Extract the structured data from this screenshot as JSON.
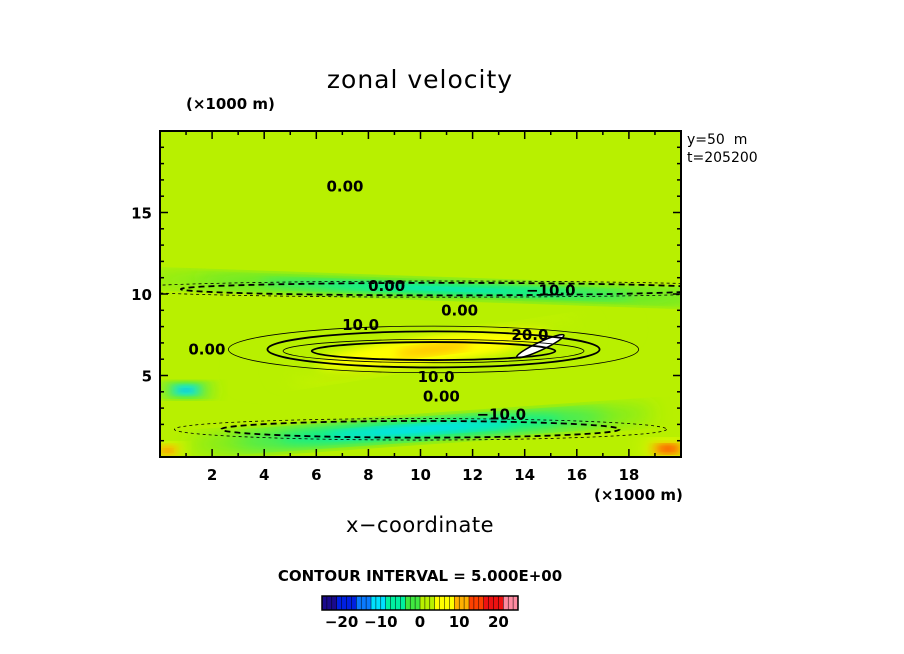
{
  "chart_data": {
    "type": "heatmap",
    "title": "zonal velocity",
    "xlabel": "x−coordinate",
    "x_unit": "(×1000 m)",
    "y_unit": "(×1000 m)",
    "xlim": [
      0,
      20
    ],
    "ylim": [
      0,
      20
    ],
    "x_ticks": [
      2,
      4,
      6,
      8,
      10,
      12,
      14,
      16,
      18
    ],
    "y_ticks": [
      5,
      10,
      15
    ],
    "annotations": [
      "y=50  m",
      "t=205200"
    ],
    "contour_interval_label": "CONTOUR INTERVAL = 5.000E+00",
    "contour_labels": [
      {
        "text": "0.00",
        "x": 7.1,
        "y": 16.6
      },
      {
        "text": "0.00",
        "x": 8.7,
        "y": 10.5
      },
      {
        "text": "−10.0",
        "x": 15.0,
        "y": 10.2
      },
      {
        "text": "0.00",
        "x": 11.5,
        "y": 9.0
      },
      {
        "text": "10.0",
        "x": 7.7,
        "y": 8.1
      },
      {
        "text": "20.0",
        "x": 14.2,
        "y": 7.5
      },
      {
        "text": "0.00",
        "x": 1.8,
        "y": 6.6
      },
      {
        "text": "10.0",
        "x": 10.6,
        "y": 4.9
      },
      {
        "text": "0.00",
        "x": 10.8,
        "y": 3.7
      },
      {
        "text": "−10.0",
        "x": 13.1,
        "y": 2.6
      }
    ],
    "colorbar": {
      "min": -25,
      "max": 25,
      "ticks": [
        -20,
        -10,
        0,
        10,
        20
      ],
      "tick_labels": [
        "−20",
        "−10",
        "0",
        "10",
        "20"
      ]
    },
    "colorscale": [
      "#1a0a8c",
      "#0020e0",
      "#0a7aff",
      "#00e0ff",
      "#00f0a0",
      "#40e840",
      "#b8f000",
      "#ffff00",
      "#ffb000",
      "#ff4000",
      "#ee1111",
      "#ff8aa0"
    ],
    "field_features": [
      {
        "kind": "jet",
        "x": 10.5,
        "y": 6.5,
        "length": 11.0,
        "width": 1.3,
        "angle_deg": 9,
        "peak": 24
      },
      {
        "kind": "jet_wide",
        "x": 10.5,
        "y": 6.6,
        "length": 15.0,
        "width": 2.6,
        "angle_deg": 7,
        "peak": 10
      },
      {
        "kind": "band",
        "x": 11.0,
        "y": 10.3,
        "length": 24.0,
        "width": 0.9,
        "angle_deg": -2,
        "peak": -9
      },
      {
        "kind": "band",
        "x": 10.0,
        "y": 1.7,
        "length": 18.0,
        "width": 1.2,
        "angle_deg": 4,
        "peak": -12
      },
      {
        "kind": "blob",
        "x": 1.0,
        "y": 4.1,
        "length": 2.0,
        "width": 0.8,
        "angle_deg": 0,
        "peak": -14
      },
      {
        "kind": "blob",
        "x": 19.5,
        "y": 0.5,
        "length": 2.4,
        "width": 1.1,
        "angle_deg": 0,
        "peak": 16
      },
      {
        "kind": "blob",
        "x": 0.3,
        "y": 0.4,
        "length": 1.4,
        "width": 0.9,
        "angle_deg": 0,
        "peak": 14
      },
      {
        "kind": "blob",
        "x": 14.5,
        "y": 7.2,
        "length": 2.4,
        "width": 0.4,
        "angle_deg": 20,
        "peak": 10
      }
    ]
  }
}
